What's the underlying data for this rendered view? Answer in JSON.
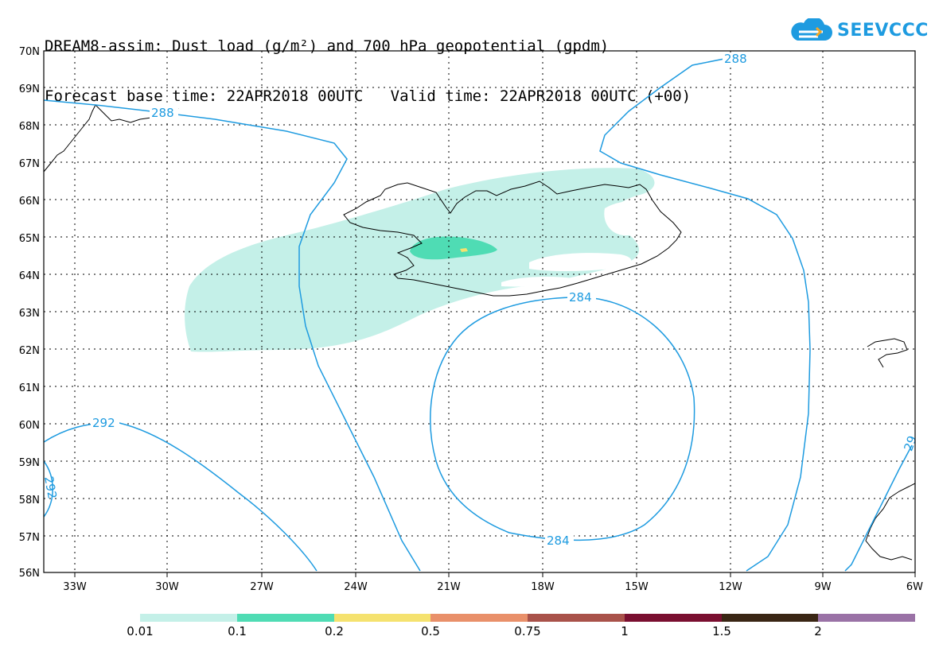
{
  "title": {
    "line1": "DREAM8-assim: Dust load (g/m²) and 700 hPa geopotential (gpdm)",
    "line2": "Forecast base time: 22APR2018 00UTC   Valid time: 22APR2018 00UTC (+00)"
  },
  "logo": {
    "text": "SEEVCCC",
    "icon": "cloud-icon"
  },
  "map": {
    "lat_labels": [
      "70N",
      "69N",
      "68N",
      "67N",
      "66N",
      "65N",
      "64N",
      "63N",
      "62N",
      "61N",
      "60N",
      "59N",
      "58N",
      "57N",
      "56N"
    ],
    "lon_labels": [
      "33W",
      "30W",
      "27W",
      "24W",
      "21W",
      "18W",
      "15W",
      "12W",
      "9W",
      "6W"
    ],
    "contour_labels": [
      "288",
      "288",
      "284",
      "284",
      "292",
      "292",
      "29"
    ],
    "contour_color": "#1e9be0",
    "dust_colors": {
      "low": "#c4f0e8",
      "mid": "#4fdcb4",
      "high": "#f5e26f"
    },
    "coastline_color": "#000000"
  },
  "legend": {
    "colors": [
      "#c4f0e8",
      "#4fdcb4",
      "#f5e26f",
      "#e9906a",
      "#a9524a",
      "#7a0f30",
      "#3a2614",
      "#9a72a6"
    ],
    "labels": [
      "0.01",
      "0.1",
      "0.2",
      "0.5",
      "0.75",
      "1",
      "1.5",
      "2"
    ]
  }
}
